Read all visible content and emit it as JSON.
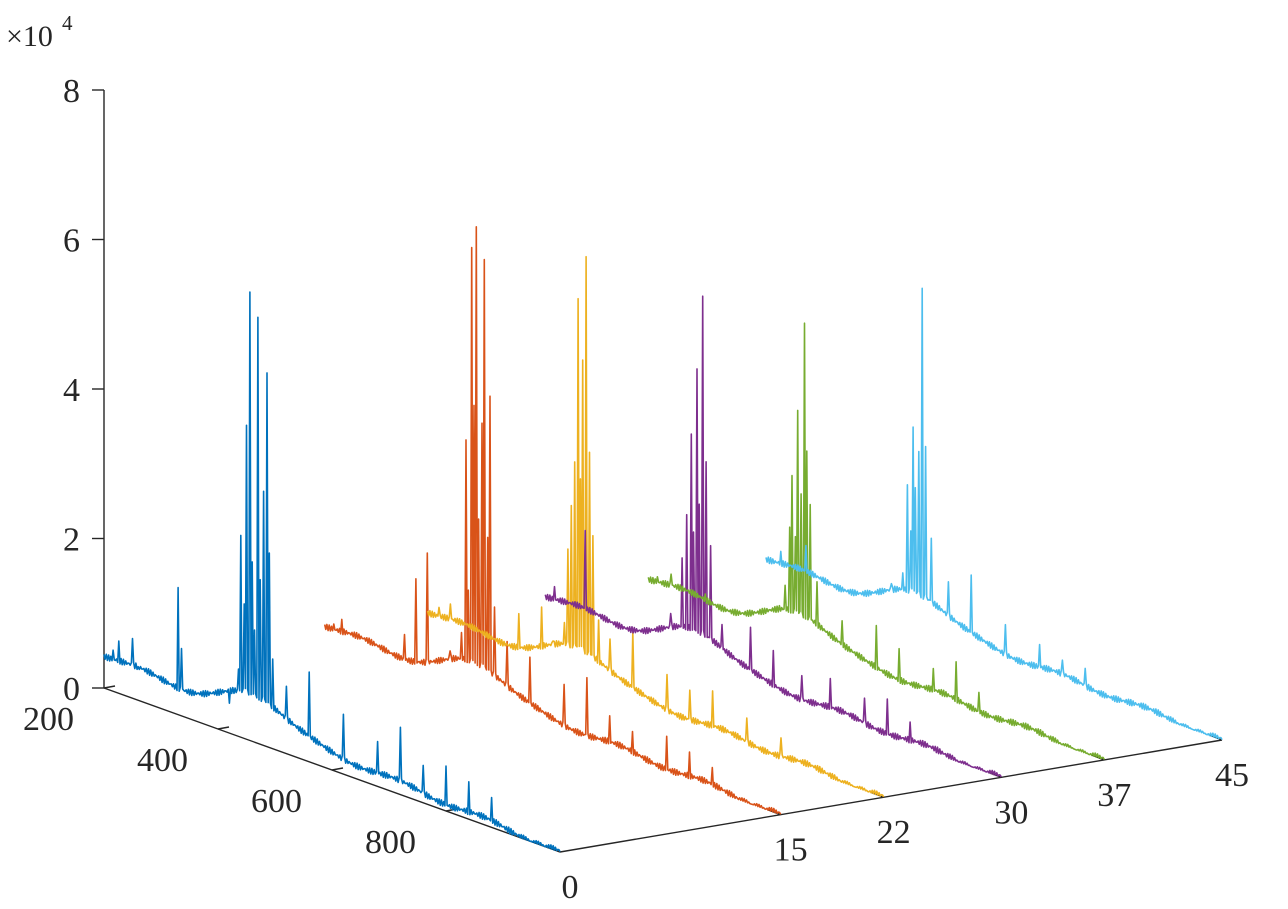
{
  "chart_data": {
    "type": "line",
    "projection": "3d-waterfall",
    "title": "",
    "exponent_label": {
      "base": "×10",
      "power": "4"
    },
    "x_axis": {
      "label": "",
      "ticks": [
        200,
        400,
        600,
        800
      ],
      "range": [
        200,
        1000
      ]
    },
    "y_axis": {
      "label": "",
      "ticks": [
        0,
        15,
        22,
        30,
        37,
        45
      ],
      "range": [
        0,
        45
      ]
    },
    "z_axis": {
      "label": "",
      "ticks": [
        0,
        2,
        4,
        6,
        8
      ],
      "range": [
        0,
        8
      ],
      "scale_note": "values in units of 10^4"
    },
    "grid": false,
    "legend": "none",
    "series": [
      {
        "y": 0,
        "color": "#0072BD",
        "baseline_start": 0.45,
        "baseline_end": 0.0,
        "peaks": [
          [
            215,
            0.55
          ],
          [
            225,
            0.7
          ],
          [
            250,
            0.8
          ],
          [
            260,
            0.45
          ],
          [
            330,
            1.7
          ],
          [
            335,
            0.9
          ],
          [
            420,
            0.4
          ],
          [
            435,
            0.9
          ],
          [
            440,
            2.7
          ],
          [
            445,
            1.8
          ],
          [
            450,
            4.2
          ],
          [
            455,
            6.0
          ],
          [
            460,
            2.4
          ],
          [
            463,
            1.5
          ],
          [
            470,
            5.7
          ],
          [
            474,
            2.2
          ],
          [
            480,
            3.4
          ],
          [
            485,
            5.0
          ],
          [
            490,
            2.6
          ],
          [
            495,
            1.2
          ],
          [
            520,
            0.9
          ],
          [
            560,
            1.2
          ],
          [
            620,
            0.8
          ],
          [
            680,
            0.6
          ],
          [
            720,
            0.9
          ],
          [
            760,
            0.5
          ],
          [
            800,
            0.6
          ],
          [
            840,
            0.5
          ],
          [
            880,
            0.4
          ]
        ]
      },
      {
        "y": 15,
        "color": "#D95319",
        "baseline_start": 0.35,
        "baseline_end": 0.0,
        "peaks": [
          [
            215,
            0.4
          ],
          [
            230,
            0.5
          ],
          [
            340,
            0.6
          ],
          [
            360,
            1.4
          ],
          [
            380,
            1.8
          ],
          [
            420,
            0.6
          ],
          [
            440,
            0.9
          ],
          [
            448,
            3.5
          ],
          [
            452,
            1.5
          ],
          [
            458,
            6.1
          ],
          [
            462,
            4.0
          ],
          [
            466,
            6.4
          ],
          [
            470,
            2.5
          ],
          [
            475,
            3.8
          ],
          [
            480,
            6.0
          ],
          [
            485,
            2.3
          ],
          [
            490,
            4.2
          ],
          [
            497,
            1.4
          ],
          [
            520,
            1.0
          ],
          [
            560,
            0.9
          ],
          [
            620,
            0.7
          ],
          [
            660,
            0.9
          ],
          [
            700,
            0.5
          ],
          [
            740,
            0.4
          ],
          [
            800,
            0.5
          ],
          [
            840,
            0.4
          ],
          [
            880,
            0.3
          ]
        ]
      },
      {
        "y": 22,
        "color": "#EDB120",
        "baseline_start": 0.3,
        "baseline_end": 0.0,
        "peaks": [
          [
            220,
            0.4
          ],
          [
            240,
            0.5
          ],
          [
            360,
            0.7
          ],
          [
            400,
            0.9
          ],
          [
            420,
            0.5
          ],
          [
            440,
            0.8
          ],
          [
            446,
            1.8
          ],
          [
            452,
            2.4
          ],
          [
            458,
            3.0
          ],
          [
            463,
            5.2
          ],
          [
            468,
            2.8
          ],
          [
            472,
            4.4
          ],
          [
            478,
            5.8
          ],
          [
            484,
            3.2
          ],
          [
            490,
            2.1
          ],
          [
            500,
            1.0
          ],
          [
            520,
            0.8
          ],
          [
            560,
            1.0
          ],
          [
            620,
            0.6
          ],
          [
            660,
            0.5
          ],
          [
            700,
            0.6
          ],
          [
            760,
            0.4
          ],
          [
            820,
            0.3
          ]
        ]
      },
      {
        "y": 30,
        "color": "#7E2F8E",
        "baseline_start": 0.25,
        "baseline_end": 0.0,
        "peaks": [
          [
            215,
            0.4
          ],
          [
            270,
            1.3
          ],
          [
            420,
            0.6
          ],
          [
            440,
            1.4
          ],
          [
            448,
            2.0
          ],
          [
            455,
            3.1
          ],
          [
            460,
            1.8
          ],
          [
            465,
            4.0
          ],
          [
            470,
            2.2
          ],
          [
            476,
            5.0
          ],
          [
            482,
            2.8
          ],
          [
            490,
            1.7
          ],
          [
            510,
            0.7
          ],
          [
            560,
            0.8
          ],
          [
            600,
            0.6
          ],
          [
            650,
            0.4
          ],
          [
            700,
            0.5
          ],
          [
            760,
            0.4
          ],
          [
            800,
            0.5
          ],
          [
            840,
            0.3
          ]
        ]
      },
      {
        "y": 37,
        "color": "#77AC30",
        "baseline_start": 0.25,
        "baseline_end": 0.0,
        "peaks": [
          [
            215,
            0.3
          ],
          [
            240,
            0.4
          ],
          [
            300,
            0.3
          ],
          [
            430,
            0.5
          ],
          [
            440,
            0.8
          ],
          [
            448,
            1.6
          ],
          [
            452,
            2.3
          ],
          [
            458,
            1.5
          ],
          [
            462,
            3.2
          ],
          [
            468,
            2.1
          ],
          [
            473,
            4.4
          ],
          [
            478,
            2.7
          ],
          [
            483,
            2.0
          ],
          [
            495,
            1.0
          ],
          [
            540,
            0.6
          ],
          [
            600,
            0.7
          ],
          [
            640,
            0.5
          ],
          [
            700,
            0.4
          ],
          [
            740,
            0.6
          ],
          [
            780,
            0.3
          ]
        ]
      },
      {
        "y": 45,
        "color": "#4DBEEE",
        "baseline_start": 0.25,
        "baseline_end": 0.0,
        "peaks": [
          [
            225,
            0.4
          ],
          [
            270,
            0.6
          ],
          [
            420,
            0.5
          ],
          [
            440,
            0.7
          ],
          [
            448,
            1.9
          ],
          [
            453,
            1.3
          ],
          [
            458,
            2.7
          ],
          [
            462,
            1.9
          ],
          [
            468,
            2.4
          ],
          [
            474,
            4.6
          ],
          [
            480,
            2.5
          ],
          [
            490,
            1.3
          ],
          [
            520,
            0.8
          ],
          [
            560,
            1.0
          ],
          [
            620,
            0.5
          ],
          [
            680,
            0.4
          ],
          [
            720,
            0.3
          ],
          [
            760,
            0.3
          ]
        ]
      }
    ]
  }
}
